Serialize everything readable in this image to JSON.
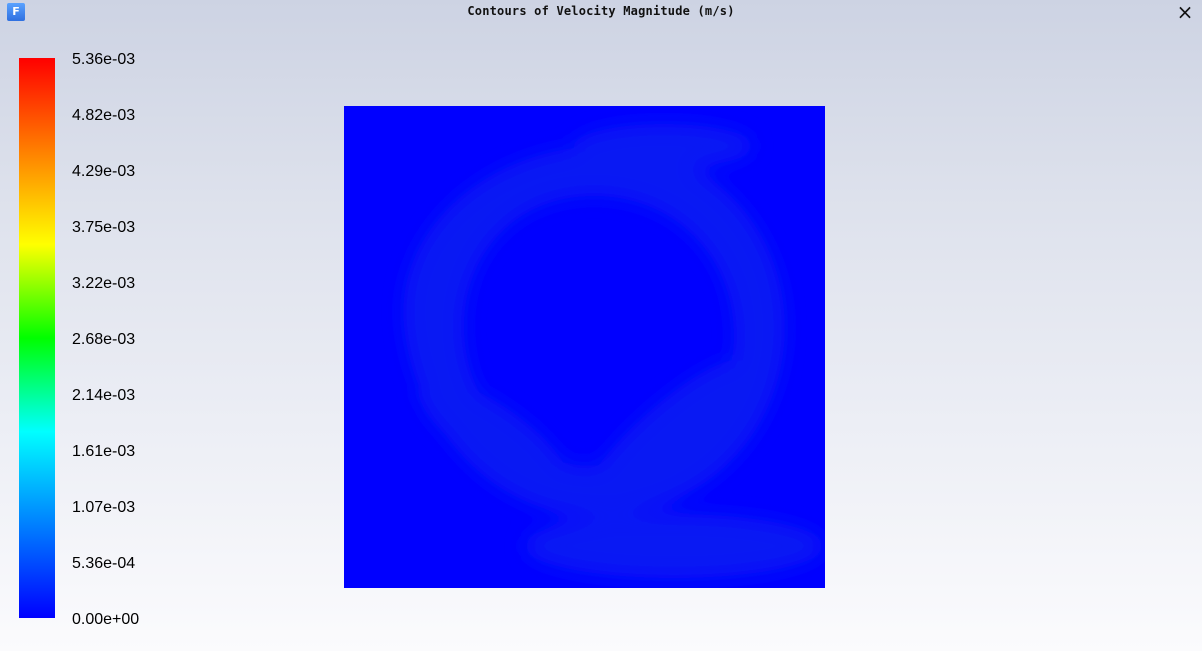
{
  "window": {
    "title": "Contours of Velocity Magnitude (m/s)",
    "app_icon_text": "F",
    "close_label": "×"
  },
  "colorbar": {
    "labels": [
      "5.36e-03",
      "4.82e-03",
      "4.29e-03",
      "3.75e-03",
      "3.22e-03",
      "2.68e-03",
      "2.14e-03",
      "1.61e-03",
      "1.07e-03",
      "5.36e-04",
      "0.00e+00"
    ],
    "colors": [
      "#0000ff",
      "#0080ff",
      "#00ffff",
      "#00ff00",
      "#ffff00",
      "#ff8000",
      "#ff0000"
    ]
  },
  "plot": {
    "fill_color": "#0000ff",
    "highlight_color": "#0a24f0"
  }
}
